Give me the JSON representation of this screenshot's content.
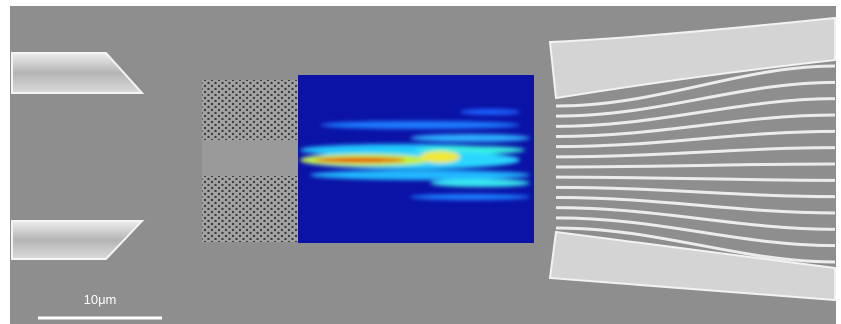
{
  "scale_bar": {
    "label": "10μm"
  }
}
